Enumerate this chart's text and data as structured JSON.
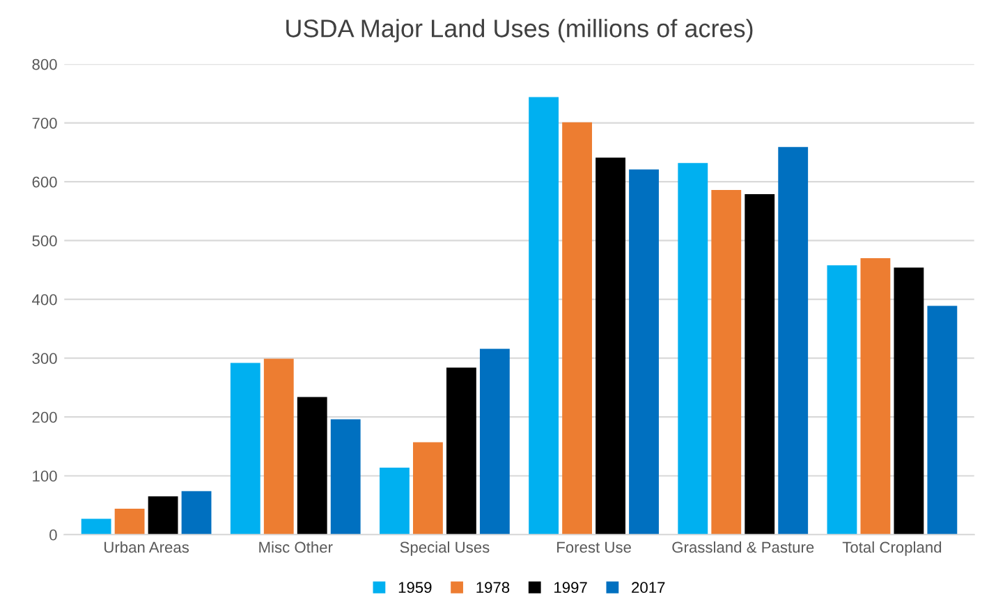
{
  "chart_data": {
    "type": "bar",
    "title": "USDA Major Land Uses (millions of acres)",
    "categories": [
      "Urban Areas",
      "Misc Other",
      "Special Uses",
      "Forest Use",
      "Grassland & Pasture",
      "Total Cropland"
    ],
    "series": [
      {
        "name": "1959",
        "color": "#00b0f0",
        "values": [
          27,
          292,
          114,
          744,
          632,
          458
        ]
      },
      {
        "name": "1978",
        "color": "#ed7d31",
        "values": [
          44,
          299,
          157,
          701,
          586,
          470
        ]
      },
      {
        "name": "1997",
        "color": "#000000",
        "values": [
          65,
          234,
          284,
          641,
          579,
          454
        ]
      },
      {
        "name": "2017",
        "color": "#0070c0",
        "values": [
          74,
          196,
          316,
          621,
          659,
          389
        ]
      }
    ],
    "ylim": [
      0,
      800
    ],
    "yticks": [
      0,
      100,
      200,
      300,
      400,
      500,
      600,
      700,
      800
    ],
    "grid": "y",
    "legend": "bottom"
  }
}
